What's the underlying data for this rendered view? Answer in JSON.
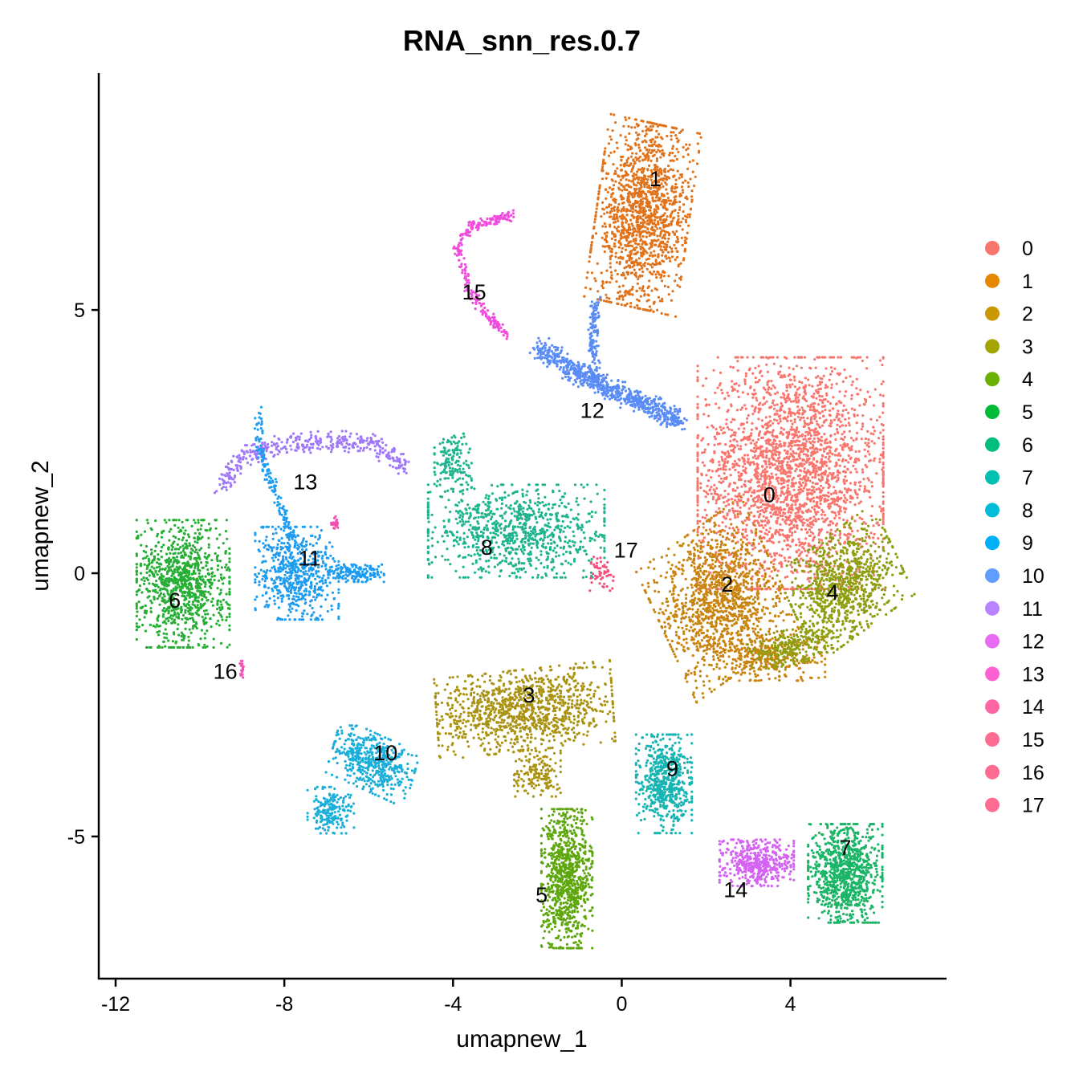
{
  "chart_data": {
    "type": "scatter",
    "title": "RNA_snn_res.0.7",
    "xlabel": "umapnew_1",
    "ylabel": "umapnew_2",
    "xlim": [
      -12.4,
      7.7
    ],
    "ylim": [
      -7.7,
      9.5
    ],
    "x_ticks": [
      -12,
      -8,
      -4,
      0,
      4
    ],
    "x_tick_labels": [
      "-12",
      "-8",
      "-4",
      "0",
      "4"
    ],
    "y_ticks": [
      -5,
      0,
      5
    ],
    "y_tick_labels": [
      "-5",
      "0",
      "5"
    ],
    "grid": false,
    "legend_position": "right",
    "clusters": [
      {
        "name": "0",
        "color": "#F8766D",
        "label_pos": [
          3.5,
          1.5
        ]
      },
      {
        "name": "1",
        "color": "#E58700",
        "label_pos": [
          0.8,
          7.5
        ]
      },
      {
        "name": "2",
        "color": "#C99800",
        "label_pos": [
          2.5,
          -0.2
        ]
      },
      {
        "name": "3",
        "color": "#A3A500",
        "label_pos": [
          -2.2,
          -2.3
        ]
      },
      {
        "name": "4",
        "color": "#6BB100",
        "label_pos": [
          5.0,
          -0.35
        ]
      },
      {
        "name": "5",
        "color": "#00BA38",
        "label_pos": [
          -1.9,
          -6.1
        ]
      },
      {
        "name": "6",
        "color": "#00BF7D",
        "label_pos": [
          -10.6,
          -0.5
        ]
      },
      {
        "name": "7",
        "color": "#00C0AF",
        "label_pos": [
          5.3,
          -5.2
        ]
      },
      {
        "name": "8",
        "color": "#00BCD8",
        "label_pos": [
          -3.2,
          0.5
        ]
      },
      {
        "name": "9",
        "color": "#00B0F6",
        "label_pos": [
          1.2,
          -3.7
        ]
      },
      {
        "name": "10",
        "color": "#619CFF",
        "label_pos": [
          -5.6,
          -3.4
        ]
      },
      {
        "name": "11",
        "color": "#B983FF",
        "label_pos": [
          -7.4,
          0.3
        ]
      },
      {
        "name": "12",
        "color": "#E76BF3",
        "label_pos": [
          -0.7,
          3.1
        ]
      },
      {
        "name": "13",
        "color": "#FD61D1",
        "label_pos": [
          -7.5,
          1.75
        ]
      },
      {
        "name": "14",
        "color": "#FF67A4",
        "label_pos": [
          2.7,
          -6.0
        ]
      },
      {
        "name": "15",
        "color": "#FF6C91",
        "label_pos": [
          -3.5,
          5.35
        ]
      },
      {
        "name": "16",
        "color": "#FF6C91",
        "label_pos": [
          -9.4,
          -1.85
        ]
      },
      {
        "name": "17",
        "color": "#FF6C91",
        "label_pos": [
          0.1,
          0.45
        ]
      }
    ],
    "point_colors": {
      "0": "#F8766D",
      "1": "#E0731B",
      "2": "#C98410",
      "3": "#AA9312",
      "4": "#8E9E10",
      "5": "#5EA70E",
      "6": "#26AE35",
      "7": "#1AB566",
      "8": "#1DB48E",
      "9": "#17B4B2",
      "10": "#1BAED8",
      "11": "#1E9CF0",
      "12": "#5A8CF5",
      "13": "#9E78F8",
      "14": "#D462F2",
      "15": "#EE4EDB",
      "16": "#F54EB5",
      "17": "#F4517F"
    },
    "shapes": [
      {
        "c": "0",
        "cx": 4.0,
        "cy": 1.9,
        "sx": 2.0,
        "sy": 2.0,
        "rot": 0,
        "n": 2600
      },
      {
        "c": "1",
        "cx": 0.5,
        "cy": 6.8,
        "sx": 1.0,
        "sy": 1.6,
        "rot": -10,
        "n": 1500
      },
      {
        "c": "2",
        "cx": 2.3,
        "cy": -0.5,
        "sx": 1.3,
        "sy": 1.3,
        "rot": 30,
        "n": 1300
      },
      {
        "c": "2",
        "cx": 3.5,
        "cy": -1.6,
        "sx": 1.2,
        "sy": 0.4,
        "rot": 0,
        "n": 300
      },
      {
        "c": "3",
        "cx": -2.3,
        "cy": -2.6,
        "sx": 1.9,
        "sy": 0.7,
        "rot": 5,
        "n": 1100
      },
      {
        "c": "3",
        "cx": -2.0,
        "cy": -3.8,
        "sx": 0.5,
        "sy": 0.4,
        "rot": 0,
        "n": 150
      },
      {
        "c": "4",
        "cx": 5.3,
        "cy": -0.2,
        "sx": 1.2,
        "sy": 0.9,
        "rot": 30,
        "n": 900
      },
      {
        "c": "4",
        "cx": 4.0,
        "cy": -1.4,
        "sx": 0.9,
        "sy": 0.3,
        "rot": 10,
        "n": 250
      },
      {
        "c": "5",
        "cx": -1.3,
        "cy": -5.8,
        "sx": 0.55,
        "sy": 1.2,
        "rot": 0,
        "n": 900
      },
      {
        "c": "6",
        "cx": -10.4,
        "cy": -0.2,
        "sx": 1.0,
        "sy": 1.1,
        "rot": 0,
        "n": 1000
      },
      {
        "c": "7",
        "cx": 5.3,
        "cy": -5.7,
        "sx": 0.8,
        "sy": 0.85,
        "rot": 0,
        "n": 900
      },
      {
        "c": "8",
        "cx": -2.5,
        "cy": 0.8,
        "sx": 1.9,
        "sy": 0.8,
        "rot": 0,
        "n": 900
      },
      {
        "c": "8",
        "cx": -4.0,
        "cy": 2.1,
        "sx": 0.4,
        "sy": 0.5,
        "rot": 0,
        "n": 150
      },
      {
        "c": "9",
        "cx": 1.0,
        "cy": -4.0,
        "sx": 0.6,
        "sy": 0.85,
        "rot": 0,
        "n": 600
      },
      {
        "c": "10",
        "cx": -5.9,
        "cy": -3.6,
        "sx": 0.9,
        "sy": 0.5,
        "rot": -20,
        "n": 500
      },
      {
        "c": "10",
        "cx": -6.9,
        "cy": -4.5,
        "sx": 0.5,
        "sy": 0.4,
        "rot": 0,
        "n": 200
      },
      {
        "c": "11",
        "cx": -7.7,
        "cy": 0.0,
        "sx": 0.9,
        "sy": 0.8,
        "rot": 0,
        "n": 600
      },
      {
        "c": "11",
        "cx": -6.3,
        "cy": 0.0,
        "sx": 0.6,
        "sy": 0.15,
        "rot": 0,
        "n": 150
      },
      {
        "c": "14",
        "cx": 3.2,
        "cy": -5.5,
        "sx": 0.8,
        "sy": 0.4,
        "rot": 0,
        "n": 450
      },
      {
        "c": "16",
        "cx": -6.8,
        "cy": 0.95,
        "sx": 0.08,
        "sy": 0.12,
        "rot": 0,
        "n": 20
      },
      {
        "c": "16",
        "cx": -9.0,
        "cy": -1.8,
        "sx": 0.05,
        "sy": 0.2,
        "rot": 0,
        "n": 15
      },
      {
        "c": "17",
        "cx": -0.5,
        "cy": 0.0,
        "sx": 0.3,
        "sy": 0.3,
        "rot": 0,
        "n": 50
      }
    ],
    "paths": [
      {
        "c": "12",
        "pts": [
          [
            -2.0,
            4.3
          ],
          [
            -1.0,
            3.8
          ],
          [
            -0.3,
            3.5
          ],
          [
            0.6,
            3.2
          ],
          [
            1.4,
            2.9
          ]
        ],
        "w": 0.2,
        "n": 700
      },
      {
        "c": "12",
        "pts": [
          [
            -0.6,
            3.6
          ],
          [
            -0.7,
            4.5
          ],
          [
            -0.6,
            5.2
          ]
        ],
        "w": 0.12,
        "n": 150
      },
      {
        "c": "15",
        "pts": [
          [
            -2.7,
            4.5
          ],
          [
            -3.3,
            5.0
          ],
          [
            -3.7,
            5.5
          ],
          [
            -3.9,
            6.2
          ],
          [
            -3.6,
            6.6
          ],
          [
            -2.6,
            6.8
          ]
        ],
        "w": 0.1,
        "n": 260
      },
      {
        "c": "13",
        "pts": [
          [
            -9.5,
            1.6
          ],
          [
            -9.0,
            2.2
          ],
          [
            -8.3,
            2.4
          ],
          [
            -7.2,
            2.5
          ],
          [
            -6.4,
            2.5
          ],
          [
            -5.7,
            2.4
          ],
          [
            -5.1,
            2.0
          ]
        ],
        "w": 0.2,
        "n": 400
      },
      {
        "c": "11",
        "pts": [
          [
            -8.6,
            3.1
          ],
          [
            -8.6,
            2.3
          ],
          [
            -8.2,
            1.5
          ],
          [
            -7.8,
            0.6
          ]
        ],
        "w": 0.1,
        "n": 150
      }
    ]
  }
}
